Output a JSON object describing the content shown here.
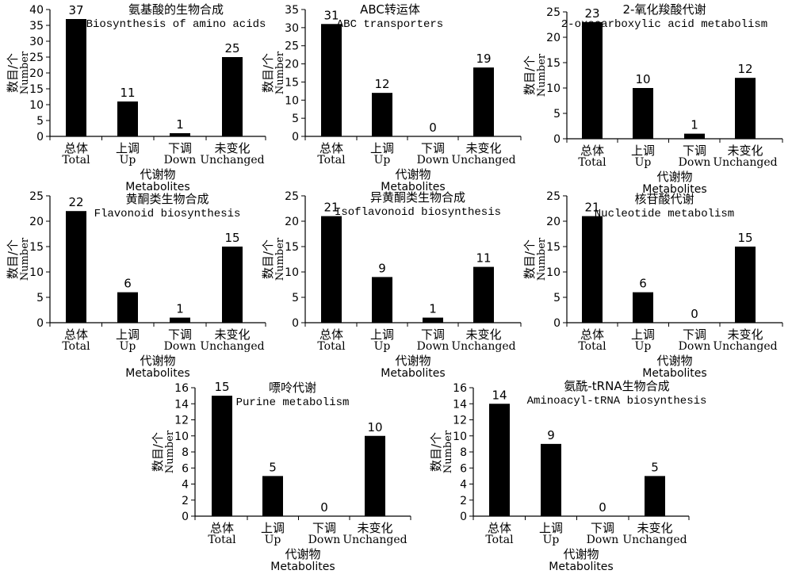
{
  "chart_data": [
    {
      "type": "bar",
      "title": "氨基酸的生物合成",
      "subtitle": "Biosynthesis of amino acids",
      "categories_cn": [
        "总体",
        "上调",
        "下调",
        "未变化"
      ],
      "categories_en": [
        "Total",
        "Up",
        "Down",
        "Unchanged"
      ],
      "values": [
        37,
        11,
        1,
        25
      ],
      "ylim": [
        0,
        40
      ],
      "yticks": [
        0,
        5,
        10,
        15,
        20,
        25,
        30,
        35,
        40
      ],
      "ylabel_cn": "数目/个",
      "ylabel_en": "Number",
      "xlabel_cn": "代谢物",
      "xlabel_en": "Metabolites",
      "grid": false
    },
    {
      "type": "bar",
      "title": "ABC转运体",
      "subtitle": "ABC transporters",
      "categories_cn": [
        "总体",
        "上调",
        "下调",
        "未变化"
      ],
      "categories_en": [
        "Total",
        "Up",
        "Down",
        "Unchanged"
      ],
      "values": [
        31,
        12,
        0,
        19
      ],
      "ylim": [
        0,
        35
      ],
      "yticks": [
        0,
        5,
        10,
        15,
        20,
        25,
        30,
        35
      ],
      "ylabel_cn": "数目/个",
      "ylabel_en": "Number",
      "xlabel_cn": "代谢物",
      "xlabel_en": "Metabolites",
      "grid": false
    },
    {
      "type": "bar",
      "title": "2-氧化羧酸代谢",
      "subtitle": "2-oxocarboxylic acid metabolism",
      "categories_cn": [
        "总体",
        "上调",
        "下调",
        "未变化"
      ],
      "categories_en": [
        "Total",
        "Up",
        "Down",
        "Unchanged"
      ],
      "values": [
        23,
        10,
        1,
        12
      ],
      "ylim": [
        0,
        25
      ],
      "yticks": [
        0,
        5,
        10,
        15,
        20,
        25
      ],
      "ylabel_cn": "数目/个",
      "ylabel_en": "Number",
      "xlabel_cn": "代谢物",
      "xlabel_en": "Metabolites",
      "grid": false
    },
    {
      "type": "bar",
      "title": "黄酮类生物合成",
      "subtitle": "Flavonoid biosynthesis",
      "categories_cn": [
        "总体",
        "上调",
        "下调",
        "未变化"
      ],
      "categories_en": [
        "Total",
        "Up",
        "Down",
        "Unchanged"
      ],
      "values": [
        22,
        6,
        1,
        15
      ],
      "ylim": [
        0,
        25
      ],
      "yticks": [
        0,
        5,
        10,
        15,
        20,
        25
      ],
      "ylabel_cn": "数目/个",
      "ylabel_en": "Number",
      "xlabel_cn": "代谢物",
      "xlabel_en": "Metabolites",
      "grid": false
    },
    {
      "type": "bar",
      "title": "异黄酮类生物合成",
      "subtitle": "Isoflavonoid biosynthesis",
      "categories_cn": [
        "总体",
        "上调",
        "下调",
        "未变化"
      ],
      "categories_en": [
        "Total",
        "Up",
        "Down",
        "Unchanged"
      ],
      "values": [
        21,
        9,
        1,
        11
      ],
      "ylim": [
        0,
        25
      ],
      "yticks": [
        0,
        5,
        10,
        15,
        20,
        25
      ],
      "ylabel_cn": "数目/个",
      "ylabel_en": "Number",
      "xlabel_cn": "代谢物",
      "xlabel_en": "Metabolites",
      "grid": false
    },
    {
      "type": "bar",
      "title": "核苷酸代谢",
      "subtitle": "Nucleotide metabolism",
      "categories_cn": [
        "总体",
        "上调",
        "下调",
        "未变化"
      ],
      "categories_en": [
        "Total",
        "Up",
        "Down",
        "Unchanged"
      ],
      "values": [
        21,
        6,
        0,
        15
      ],
      "ylim": [
        0,
        25
      ],
      "yticks": [
        0,
        5,
        10,
        15,
        20,
        25
      ],
      "ylabel_cn": "数目/个",
      "ylabel_en": "Number",
      "xlabel_cn": "代谢物",
      "xlabel_en": "Metabolites",
      "grid": false
    },
    {
      "type": "bar",
      "title": "嘌呤代谢",
      "subtitle": "Purine metabolism",
      "categories_cn": [
        "总体",
        "上调",
        "下调",
        "未变化"
      ],
      "categories_en": [
        "Total",
        "Up",
        "Down",
        "Unchanged"
      ],
      "values": [
        15,
        5,
        0,
        10
      ],
      "ylim": [
        0,
        16
      ],
      "yticks": [
        0,
        2,
        4,
        6,
        8,
        10,
        12,
        14,
        16
      ],
      "ylabel_cn": "数目/个",
      "ylabel_en": "Number",
      "xlabel_cn": "代谢物",
      "xlabel_en": "Metabolites",
      "grid": false
    },
    {
      "type": "bar",
      "title": "氨酰-tRNA生物合成",
      "subtitle": "Aminoacyl-tRNA biosynthesis",
      "categories_cn": [
        "总体",
        "上调",
        "下调",
        "未变化"
      ],
      "categories_en": [
        "Total",
        "Up",
        "Down",
        "Unchanged"
      ],
      "values": [
        14,
        9,
        0,
        5
      ],
      "ylim": [
        0,
        16
      ],
      "yticks": [
        0,
        2,
        4,
        6,
        8,
        10,
        12,
        14,
        16
      ],
      "ylabel_cn": "数目/个",
      "ylabel_en": "Number",
      "xlabel_cn": "代谢物",
      "xlabel_en": "Metabolites",
      "grid": false
    }
  ]
}
